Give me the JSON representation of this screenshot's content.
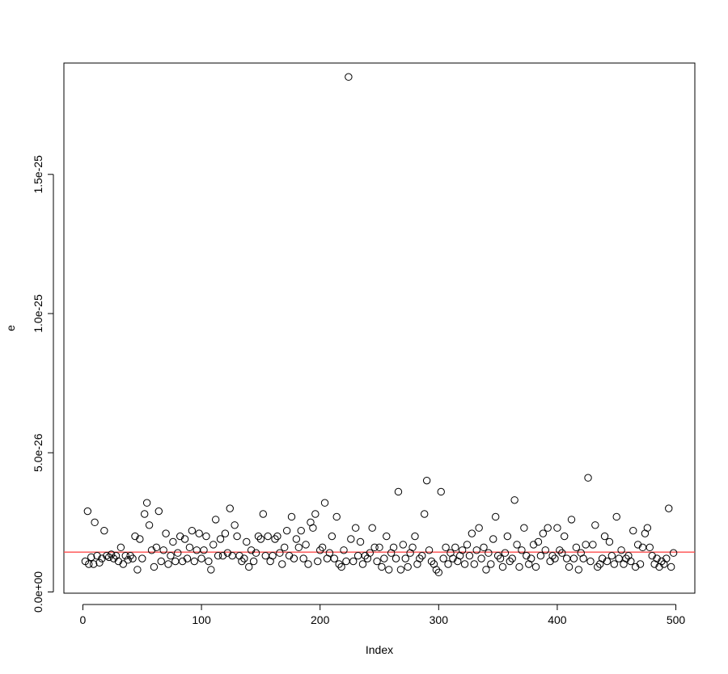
{
  "chart_data": {
    "type": "scatter",
    "title": "",
    "xlabel": "Index",
    "ylabel": "e",
    "xlim": [
      -16,
      516
    ],
    "ylim": [
      -4.5e-28,
      1.9e-25
    ],
    "x_ticks": [
      0,
      100,
      200,
      300,
      400,
      500
    ],
    "x_tick_labels": [
      "0",
      "100",
      "200",
      "300",
      "400",
      "500"
    ],
    "y_ticks": [
      0,
      5e-26,
      1e-25,
      1.5e-25
    ],
    "y_tick_labels": [
      "0.0e+00",
      "5.0e-26",
      "1.0e-25",
      "1.5e-25"
    ],
    "grid": false,
    "legend": "none",
    "reference_line": {
      "y": 1.43e-26,
      "color": "#ff4d4d"
    },
    "series": [
      {
        "marker": "open-circle",
        "color": "#000000",
        "points": [
          [
            2,
            1.1e-26
          ],
          [
            4,
            2.9e-26
          ],
          [
            5,
            1e-26
          ],
          [
            7,
            1.25e-26
          ],
          [
            9,
            1e-26
          ],
          [
            10,
            2.5e-26
          ],
          [
            12,
            1.3e-26
          ],
          [
            14,
            1.05e-26
          ],
          [
            16,
            1.2e-26
          ],
          [
            18,
            2.2e-26
          ],
          [
            20,
            1.3e-26
          ],
          [
            22,
            1.25e-26
          ],
          [
            24,
            1.35e-26
          ],
          [
            26,
            1.2e-26
          ],
          [
            28,
            1.3e-26
          ],
          [
            30,
            1.1e-26
          ],
          [
            32,
            1.6e-26
          ],
          [
            34,
            1e-26
          ],
          [
            36,
            1.3e-26
          ],
          [
            38,
            1.15e-26
          ],
          [
            40,
            1.3e-26
          ],
          [
            42,
            1.2e-26
          ],
          [
            44,
            2e-26
          ],
          [
            46,
            8e-27
          ],
          [
            48,
            1.9e-26
          ],
          [
            50,
            1.2e-26
          ],
          [
            52,
            2.8e-26
          ],
          [
            54,
            3.2e-26
          ],
          [
            56,
            2.4e-26
          ],
          [
            58,
            1.5e-26
          ],
          [
            60,
            9e-27
          ],
          [
            62,
            1.6e-26
          ],
          [
            64,
            2.9e-26
          ],
          [
            66,
            1.1e-26
          ],
          [
            68,
            1.5e-26
          ],
          [
            70,
            2.1e-26
          ],
          [
            72,
            1e-26
          ],
          [
            74,
            1.3e-26
          ],
          [
            76,
            1.8e-26
          ],
          [
            78,
            1.1e-26
          ],
          [
            80,
            1.4e-26
          ],
          [
            82,
            2e-26
          ],
          [
            84,
            1.1e-26
          ],
          [
            86,
            1.9e-26
          ],
          [
            88,
            1.2e-26
          ],
          [
            90,
            1.6e-26
          ],
          [
            92,
            2.2e-26
          ],
          [
            94,
            1.1e-26
          ],
          [
            96,
            1.5e-26
          ],
          [
            98,
            2.1e-26
          ],
          [
            100,
            1.2e-26
          ],
          [
            102,
            1.5e-26
          ],
          [
            104,
            2e-26
          ],
          [
            106,
            1.1e-26
          ],
          [
            108,
            8e-27
          ],
          [
            110,
            1.7e-26
          ],
          [
            112,
            2.6e-26
          ],
          [
            114,
            1.3e-26
          ],
          [
            116,
            1.9e-26
          ],
          [
            118,
            1.3e-26
          ],
          [
            120,
            2.1e-26
          ],
          [
            122,
            1.4e-26
          ],
          [
            124,
            3e-26
          ],
          [
            126,
            1.3e-26
          ],
          [
            128,
            2.4e-26
          ],
          [
            130,
            2e-26
          ],
          [
            132,
            1.3e-26
          ],
          [
            134,
            1.1e-26
          ],
          [
            136,
            1.2e-26
          ],
          [
            138,
            1.8e-26
          ],
          [
            140,
            9e-27
          ],
          [
            142,
            1.5e-26
          ],
          [
            144,
            1.1e-26
          ],
          [
            146,
            1.4e-26
          ],
          [
            148,
            2e-26
          ],
          [
            150,
            1.9e-26
          ],
          [
            152,
            2.8e-26
          ],
          [
            154,
            1.3e-26
          ],
          [
            156,
            2e-26
          ],
          [
            158,
            1.1e-26
          ],
          [
            160,
            1.3e-26
          ],
          [
            162,
            1.9e-26
          ],
          [
            164,
            2e-26
          ],
          [
            166,
            1.4e-26
          ],
          [
            168,
            1e-26
          ],
          [
            170,
            1.6e-26
          ],
          [
            172,
            2.2e-26
          ],
          [
            174,
            1.3e-26
          ],
          [
            176,
            2.7e-26
          ],
          [
            178,
            1.2e-26
          ],
          [
            180,
            1.9e-26
          ],
          [
            182,
            1.6e-26
          ],
          [
            184,
            2.2e-26
          ],
          [
            186,
            1.2e-26
          ],
          [
            188,
            1.7e-26
          ],
          [
            190,
            1e-26
          ],
          [
            192,
            2.5e-26
          ],
          [
            194,
            2.3e-26
          ],
          [
            196,
            2.8e-26
          ],
          [
            198,
            1.1e-26
          ],
          [
            200,
            1.5e-26
          ],
          [
            202,
            1.6e-26
          ],
          [
            204,
            3.2e-26
          ],
          [
            206,
            1.2e-26
          ],
          [
            208,
            1.4e-26
          ],
          [
            210,
            2e-26
          ],
          [
            212,
            1.2e-26
          ],
          [
            214,
            2.7e-26
          ],
          [
            216,
            1e-26
          ],
          [
            218,
            9e-27
          ],
          [
            220,
            1.5e-26
          ],
          [
            222,
            1.1e-26
          ],
          [
            224,
            1.85e-25
          ],
          [
            226,
            1.9e-26
          ],
          [
            228,
            1.1e-26
          ],
          [
            230,
            2.3e-26
          ],
          [
            232,
            1.3e-26
          ],
          [
            234,
            1.8e-26
          ],
          [
            236,
            1e-26
          ],
          [
            238,
            1.3e-26
          ],
          [
            240,
            1.2e-26
          ],
          [
            242,
            1.4e-26
          ],
          [
            244,
            2.3e-26
          ],
          [
            246,
            1.6e-26
          ],
          [
            248,
            1.1e-26
          ],
          [
            250,
            1.6e-26
          ],
          [
            252,
            9e-27
          ],
          [
            254,
            1.2e-26
          ],
          [
            256,
            2e-26
          ],
          [
            258,
            8e-27
          ],
          [
            260,
            1.4e-26
          ],
          [
            262,
            1.6e-26
          ],
          [
            264,
            1.2e-26
          ],
          [
            266,
            3.6e-26
          ],
          [
            268,
            8e-27
          ],
          [
            270,
            1.7e-26
          ],
          [
            272,
            1.2e-26
          ],
          [
            274,
            9e-27
          ],
          [
            276,
            1.4e-26
          ],
          [
            278,
            1.6e-26
          ],
          [
            280,
            2e-26
          ],
          [
            282,
            1e-26
          ],
          [
            284,
            1.2e-26
          ],
          [
            286,
            1.3e-26
          ],
          [
            288,
            2.8e-26
          ],
          [
            290,
            4e-26
          ],
          [
            292,
            1.5e-26
          ],
          [
            294,
            1.1e-26
          ],
          [
            296,
            1e-26
          ],
          [
            298,
            8e-27
          ],
          [
            300,
            7e-27
          ],
          [
            302,
            3.6e-26
          ],
          [
            304,
            1.2e-26
          ],
          [
            306,
            1.6e-26
          ],
          [
            308,
            1e-26
          ],
          [
            310,
            1.4e-26
          ],
          [
            312,
            1.2e-26
          ],
          [
            314,
            1.6e-26
          ],
          [
            316,
            1.1e-26
          ],
          [
            318,
            1.3e-26
          ],
          [
            320,
            1.5e-26
          ],
          [
            322,
            1e-26
          ],
          [
            324,
            1.7e-26
          ],
          [
            326,
            1.3e-26
          ],
          [
            328,
            2.1e-26
          ],
          [
            330,
            1e-26
          ],
          [
            332,
            1.5e-26
          ],
          [
            334,
            2.3e-26
          ],
          [
            336,
            1.2e-26
          ],
          [
            338,
            1.6e-26
          ],
          [
            340,
            8e-27
          ],
          [
            342,
            1.4e-26
          ],
          [
            344,
            1e-26
          ],
          [
            346,
            1.9e-26
          ],
          [
            348,
            2.7e-26
          ],
          [
            350,
            1.3e-26
          ],
          [
            352,
            1.2e-26
          ],
          [
            354,
            9e-27
          ],
          [
            356,
            1.4e-26
          ],
          [
            358,
            2e-26
          ],
          [
            360,
            1.1e-26
          ],
          [
            362,
            1.2e-26
          ],
          [
            364,
            3.3e-26
          ],
          [
            366,
            1.7e-26
          ],
          [
            368,
            9e-27
          ],
          [
            370,
            1.5e-26
          ],
          [
            372,
            2.3e-26
          ],
          [
            374,
            1.3e-26
          ],
          [
            376,
            1e-26
          ],
          [
            378,
            1.2e-26
          ],
          [
            380,
            1.7e-26
          ],
          [
            382,
            9e-27
          ],
          [
            384,
            1.8e-26
          ],
          [
            386,
            1.3e-26
          ],
          [
            388,
            2.1e-26
          ],
          [
            390,
            1.5e-26
          ],
          [
            392,
            2.3e-26
          ],
          [
            394,
            1.1e-26
          ],
          [
            396,
            1.3e-26
          ],
          [
            398,
            1.2e-26
          ],
          [
            400,
            2.3e-26
          ],
          [
            402,
            1.5e-26
          ],
          [
            404,
            1.4e-26
          ],
          [
            406,
            2e-26
          ],
          [
            408,
            1.2e-26
          ],
          [
            410,
            9e-27
          ],
          [
            412,
            2.6e-26
          ],
          [
            414,
            1.2e-26
          ],
          [
            416,
            1.6e-26
          ],
          [
            418,
            8e-27
          ],
          [
            420,
            1.4e-26
          ],
          [
            422,
            1.2e-26
          ],
          [
            424,
            1.7e-26
          ],
          [
            426,
            4.1e-26
          ],
          [
            428,
            1.1e-26
          ],
          [
            430,
            1.7e-26
          ],
          [
            432,
            2.4e-26
          ],
          [
            434,
            9e-27
          ],
          [
            436,
            1e-26
          ],
          [
            438,
            1.2e-26
          ],
          [
            440,
            2e-26
          ],
          [
            442,
            1.1e-26
          ],
          [
            444,
            1.8e-26
          ],
          [
            446,
            1.3e-26
          ],
          [
            448,
            1e-26
          ],
          [
            450,
            2.7e-26
          ],
          [
            452,
            1.2e-26
          ],
          [
            454,
            1.5e-26
          ],
          [
            456,
            1e-26
          ],
          [
            458,
            1.2e-26
          ],
          [
            460,
            1.3e-26
          ],
          [
            462,
            1.1e-26
          ],
          [
            464,
            2.2e-26
          ],
          [
            466,
            9e-27
          ],
          [
            468,
            1.7e-26
          ],
          [
            470,
            1e-26
          ],
          [
            472,
            1.6e-26
          ],
          [
            474,
            2.1e-26
          ],
          [
            476,
            2.3e-26
          ],
          [
            478,
            1.6e-26
          ],
          [
            480,
            1.3e-26
          ],
          [
            482,
            1e-26
          ],
          [
            484,
            1.2e-26
          ],
          [
            486,
            9e-27
          ],
          [
            488,
            1.1e-26
          ],
          [
            490,
            1e-26
          ],
          [
            492,
            1.2e-26
          ],
          [
            494,
            3e-26
          ],
          [
            496,
            9e-27
          ],
          [
            498,
            1.4e-26
          ]
        ]
      }
    ]
  }
}
